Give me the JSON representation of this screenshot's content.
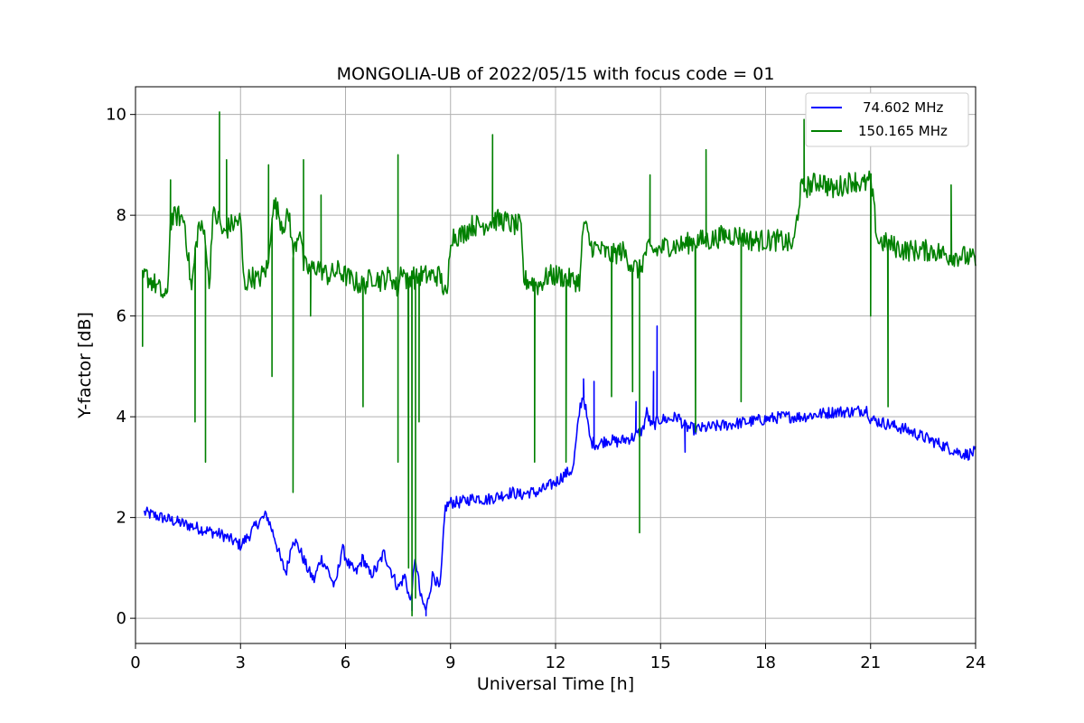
{
  "chart_data": {
    "type": "line",
    "title": "MONGOLIA-UB of 2022/05/15 with focus code = 01",
    "xlabel": "Universal Time [h]",
    "ylabel": "Y-factor [dB]",
    "xlim": [
      0,
      24
    ],
    "ylim": [
      -0.5,
      10.55
    ],
    "xticks": [
      0,
      3,
      6,
      9,
      12,
      15,
      18,
      21,
      24
    ],
    "yticks": [
      0,
      2,
      4,
      6,
      8,
      10
    ],
    "grid": true,
    "legend_position": "top-right",
    "series": [
      {
        "name": "74.602 MHz",
        "color": "#0000ff",
        "x": [
          0.25,
          0.5,
          0.75,
          1.0,
          1.25,
          1.5,
          1.75,
          2.0,
          2.25,
          2.5,
          2.75,
          3.0,
          3.25,
          3.5,
          3.75,
          4.0,
          4.15,
          4.3,
          4.5,
          4.7,
          4.9,
          5.1,
          5.3,
          5.5,
          5.7,
          5.9,
          6.1,
          6.3,
          6.5,
          6.7,
          6.9,
          7.1,
          7.3,
          7.5,
          7.7,
          7.85,
          8.0,
          8.15,
          8.3,
          8.5,
          8.7,
          8.85,
          9.0,
          9.25,
          9.5,
          9.75,
          10.0,
          10.25,
          10.5,
          10.75,
          11.0,
          11.25,
          11.5,
          11.75,
          12.0,
          12.25,
          12.5,
          12.7,
          12.8,
          12.9,
          13.0,
          13.2,
          13.5,
          13.75,
          14.0,
          14.25,
          14.5,
          14.6,
          14.75,
          14.9,
          15.0,
          15.25,
          15.5,
          15.7,
          16.0,
          16.5,
          17.0,
          17.5,
          18.0,
          18.5,
          19.0,
          19.5,
          20.0,
          20.5,
          20.9,
          21.0,
          21.25,
          21.5,
          22.0,
          22.5,
          23.0,
          23.5,
          23.75,
          24.0
        ],
        "y": [
          2.1,
          2.05,
          2.0,
          1.95,
          1.9,
          1.85,
          1.8,
          1.75,
          1.7,
          1.65,
          1.55,
          1.45,
          1.65,
          1.9,
          2.05,
          1.55,
          1.15,
          0.9,
          1.6,
          1.35,
          1.0,
          0.75,
          1.2,
          0.95,
          0.6,
          1.4,
          1.05,
          0.9,
          1.2,
          0.85,
          1.0,
          1.3,
          0.95,
          0.6,
          0.85,
          0.3,
          1.2,
          0.4,
          0.15,
          0.9,
          0.55,
          2.2,
          2.3,
          2.3,
          2.35,
          2.4,
          2.35,
          2.4,
          2.45,
          2.5,
          2.45,
          2.5,
          2.5,
          2.6,
          2.7,
          2.85,
          2.95,
          4.2,
          4.45,
          3.95,
          3.5,
          3.45,
          3.55,
          3.5,
          3.55,
          3.6,
          3.75,
          4.1,
          3.8,
          3.9,
          3.95,
          3.95,
          4.0,
          3.8,
          3.75,
          3.8,
          3.85,
          3.9,
          3.95,
          4.0,
          4.0,
          4.05,
          4.1,
          4.1,
          4.15,
          3.95,
          3.9,
          3.85,
          3.75,
          3.6,
          3.45,
          3.3,
          3.25,
          3.3
        ]
      },
      {
        "name": "150.165 MHz",
        "color": "#008000",
        "x": [
          0.2,
          0.3,
          0.6,
          0.9,
          1.0,
          1.2,
          1.4,
          1.6,
          1.7,
          1.8,
          2.0,
          2.1,
          2.2,
          2.4,
          2.5,
          2.7,
          3.0,
          3.1,
          3.3,
          3.5,
          3.8,
          3.9,
          4.0,
          4.2,
          4.4,
          4.5,
          4.7,
          4.8,
          5.0,
          5.2,
          5.5,
          5.8,
          6.2,
          6.5,
          6.8,
          7.0,
          7.3,
          7.5,
          7.6,
          7.8,
          7.9,
          8.0,
          8.1,
          8.3,
          8.7,
          8.9,
          9.0,
          9.3,
          9.6,
          9.9,
          10.2,
          10.5,
          10.8,
          11.0,
          11.1,
          11.3,
          11.5,
          11.8,
          12.1,
          12.5,
          12.7,
          12.8,
          13.0,
          13.3,
          13.6,
          13.9,
          14.2,
          14.4,
          14.6,
          14.9,
          15.2,
          15.6,
          16.0,
          16.4,
          16.8,
          17.2,
          17.6,
          18.0,
          18.4,
          18.8,
          19.0,
          19.3,
          19.6,
          19.9,
          20.2,
          20.5,
          20.8,
          21.0,
          21.2,
          21.6,
          22.0,
          22.4,
          22.8,
          23.2,
          23.6,
          24.0
        ],
        "y": [
          6.7,
          6.8,
          6.6,
          6.3,
          7.9,
          8.0,
          7.9,
          6.5,
          7.2,
          7.8,
          7.6,
          6.5,
          8.0,
          7.9,
          7.6,
          7.8,
          7.9,
          6.6,
          6.8,
          6.7,
          7.0,
          8.1,
          8.2,
          7.8,
          8.0,
          7.2,
          7.8,
          7.0,
          6.9,
          7.0,
          6.8,
          6.9,
          6.7,
          6.6,
          6.8,
          6.7,
          6.8,
          6.5,
          7.0,
          6.6,
          6.9,
          6.7,
          6.8,
          6.8,
          6.8,
          6.3,
          7.6,
          7.6,
          7.8,
          7.8,
          7.9,
          7.9,
          7.8,
          7.8,
          6.7,
          6.7,
          6.6,
          6.8,
          6.8,
          6.7,
          6.7,
          7.9,
          7.4,
          7.3,
          7.2,
          7.3,
          7.0,
          6.9,
          7.3,
          7.3,
          7.4,
          7.4,
          7.5,
          7.5,
          7.6,
          7.6,
          7.5,
          7.5,
          7.5,
          7.4,
          8.5,
          8.6,
          8.7,
          8.5,
          8.6,
          8.7,
          8.6,
          8.7,
          7.5,
          7.4,
          7.3,
          7.3,
          7.3,
          7.2,
          7.2,
          7.1
        ]
      }
    ],
    "spikes": {
      "74.602 MHz": [
        [
          12.8,
          4.75
        ],
        [
          13.1,
          4.7
        ],
        [
          14.3,
          4.3
        ],
        [
          14.8,
          4.9
        ],
        [
          14.9,
          5.8
        ],
        [
          15.7,
          3.3
        ],
        [
          7.9,
          0.15
        ],
        [
          8.3,
          0.05
        ]
      ],
      "150.165 MHz": [
        [
          0.2,
          5.4
        ],
        [
          1.0,
          8.7
        ],
        [
          1.7,
          3.9
        ],
        [
          2.0,
          3.1
        ],
        [
          2.4,
          10.05
        ],
        [
          2.6,
          9.1
        ],
        [
          3.8,
          9.0
        ],
        [
          3.9,
          4.8
        ],
        [
          4.5,
          2.5
        ],
        [
          4.8,
          9.1
        ],
        [
          5.0,
          6.0
        ],
        [
          5.3,
          8.4
        ],
        [
          6.5,
          4.2
        ],
        [
          7.5,
          3.1
        ],
        [
          7.5,
          9.2
        ],
        [
          7.8,
          1.0
        ],
        [
          7.9,
          0.05
        ],
        [
          8.0,
          0.4
        ],
        [
          8.1,
          3.9
        ],
        [
          10.2,
          9.6
        ],
        [
          11.4,
          3.1
        ],
        [
          12.3,
          3.1
        ],
        [
          14.4,
          1.7
        ],
        [
          14.7,
          8.8
        ],
        [
          16.0,
          3.7
        ],
        [
          16.3,
          9.3
        ],
        [
          17.3,
          4.3
        ],
        [
          19.1,
          9.9
        ],
        [
          21.0,
          6.0
        ],
        [
          21.5,
          4.2
        ],
        [
          23.3,
          8.6
        ],
        [
          13.6,
          4.4
        ],
        [
          14.2,
          4.5
        ]
      ]
    }
  }
}
